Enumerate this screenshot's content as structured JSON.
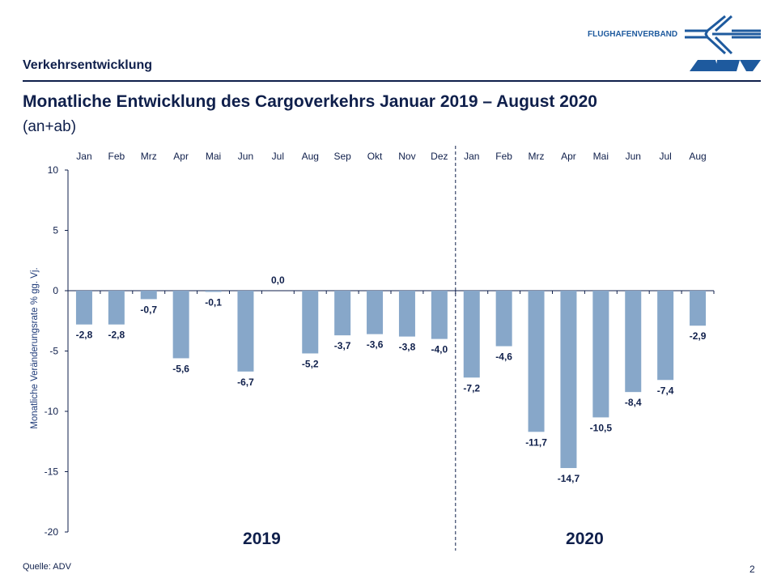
{
  "header": {
    "section": "Verkehrsentwicklung",
    "title": "Monatliche Entwicklung des Cargoverkehrs Januar 2019 – August 2020",
    "subtitle": "(an+ab)"
  },
  "logo": {
    "text": "FLUGHAFENVERBAND",
    "mark": "ADV",
    "color": "#1e5a9e"
  },
  "footer": {
    "source": "Quelle: ADV",
    "page": "2"
  },
  "chart_data": {
    "type": "bar",
    "categories": [
      "Jan",
      "Feb",
      "Mrz",
      "Apr",
      "Mai",
      "Jun",
      "Jul",
      "Aug",
      "Sep",
      "Okt",
      "Nov",
      "Dez",
      "Jan",
      "Feb",
      "Mrz",
      "Apr",
      "Mai",
      "Jun",
      "Jul",
      "Aug"
    ],
    "values": [
      -2.8,
      -2.8,
      -0.7,
      -5.6,
      -0.1,
      -6.7,
      0.0,
      -5.2,
      -3.7,
      -3.6,
      -3.8,
      -4.0,
      -7.2,
      -4.6,
      -11.7,
      -14.7,
      -10.5,
      -8.4,
      -7.4,
      -2.9
    ],
    "data_labels": [
      "-2,8",
      "-2,8",
      "-0,7",
      "-5,6",
      "-0,1",
      "-6,7",
      "0,0",
      "-5,2",
      "-3,7",
      "-3,6",
      "-3,8",
      "-4,0",
      "-7,2",
      "-4,6",
      "-11,7",
      "-14,7",
      "-10,5",
      "-8,4",
      "-7,4",
      "-2,9"
    ],
    "groups": [
      {
        "label": "2019",
        "from": 0,
        "to": 11
      },
      {
        "label": "2020",
        "from": 12,
        "to": 19
      }
    ],
    "ylabel": "Monatliche Veränderungsrate % gg. Vj.",
    "ylim": [
      -20,
      10
    ],
    "yticks": [
      10,
      5,
      0,
      -5,
      -10,
      -15,
      -20
    ],
    "xaxis_position": "top",
    "grid": false,
    "bar_color": "#87a7c9",
    "text_color": "#0f1f4b"
  }
}
